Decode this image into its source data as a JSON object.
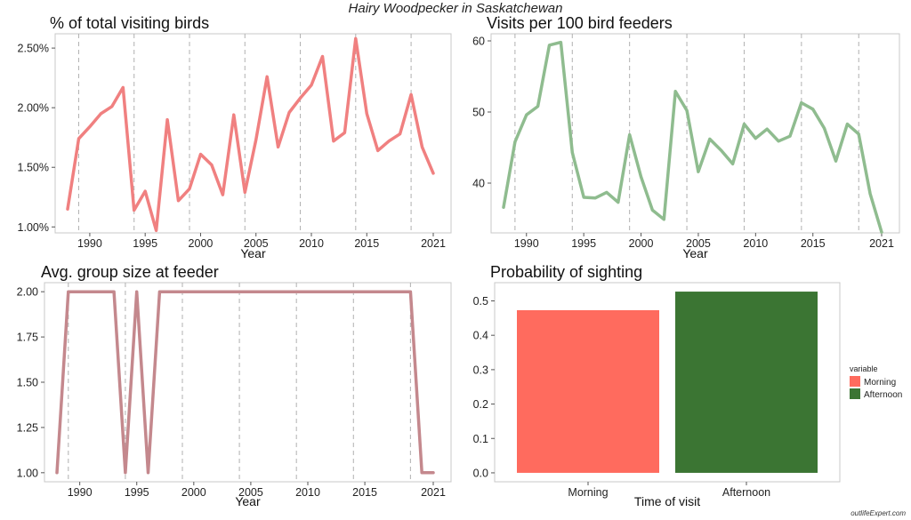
{
  "title": "Hairy Woodpecker in Saskatchewan",
  "watermark": "outlifeExpert.com",
  "colors": {
    "pct_line": "#f08080",
    "visits_line": "#8fbc8f",
    "group_line": "#c4888d",
    "morning": "#ff6b5e",
    "afternoon": "#3b7533",
    "grid": "#b0b0b0"
  },
  "chart_data": [
    {
      "id": "pct",
      "type": "line",
      "title": "% of total visiting birds",
      "xlabel": "Year",
      "ylabel": "",
      "xlim": [
        1988,
        2021
      ],
      "ylim": [
        0.95,
        2.62
      ],
      "xticks": [
        1990,
        1995,
        2000,
        2005,
        2010,
        2015,
        2021
      ],
      "yticks": [
        1.0,
        1.5,
        2.0,
        2.5
      ],
      "ytick_labels": [
        "1.00%",
        "1.50%",
        "2.00%",
        "2.50%"
      ],
      "grid": "vertical dashed",
      "x": [
        1988,
        1989,
        1990,
        1991,
        1992,
        1993,
        1994,
        1995,
        1996,
        1997,
        1998,
        1999,
        2000,
        2001,
        2002,
        2003,
        2004,
        2005,
        2006,
        2007,
        2008,
        2009,
        2010,
        2011,
        2012,
        2013,
        2014,
        2015,
        2016,
        2017,
        2018,
        2019,
        2020,
        2021
      ],
      "series": [
        {
          "values": [
            1.15,
            1.74,
            1.84,
            1.95,
            2.01,
            2.17,
            1.14,
            1.3,
            0.97,
            1.9,
            1.22,
            1.32,
            1.61,
            1.52,
            1.27,
            1.94,
            1.29,
            1.73,
            2.26,
            1.67,
            1.96,
            2.08,
            2.19,
            2.43,
            1.72,
            1.79,
            2.58,
            1.95,
            1.64,
            1.72,
            1.78,
            2.11,
            1.67,
            1.45
          ]
        }
      ]
    },
    {
      "id": "visits",
      "type": "line",
      "title": "Visits per 100 bird feeders",
      "xlabel": "Year",
      "ylabel": "",
      "xlim": [
        1988,
        2021
      ],
      "ylim": [
        33,
        61
      ],
      "xticks": [
        1990,
        1995,
        2000,
        2005,
        2010,
        2015,
        2021
      ],
      "yticks": [
        40,
        50,
        60
      ],
      "ytick_labels": [
        "40",
        "50",
        "60"
      ],
      "grid": "vertical dashed",
      "x": [
        1988,
        1989,
        1990,
        1991,
        1992,
        1993,
        1994,
        1995,
        1996,
        1997,
        1998,
        1999,
        2000,
        2001,
        2002,
        2003,
        2004,
        2005,
        2006,
        2007,
        2008,
        2009,
        2010,
        2011,
        2012,
        2013,
        2014,
        2015,
        2016,
        2017,
        2018,
        2019,
        2020,
        2021
      ],
      "series": [
        {
          "values": [
            36.6,
            45.8,
            49.6,
            50.8,
            59.4,
            59.8,
            44.3,
            38.0,
            37.9,
            38.7,
            37.3,
            46.8,
            40.9,
            36.2,
            34.9,
            52.9,
            50.2,
            41.6,
            46.2,
            44.6,
            42.7,
            48.3,
            46.3,
            47.6,
            45.9,
            46.6,
            51.3,
            50.4,
            47.7,
            43.1,
            48.3,
            46.9,
            38.5,
            33.1
          ]
        }
      ]
    },
    {
      "id": "group",
      "type": "line",
      "title": "Avg. group size at feeder",
      "xlabel": "Year",
      "ylabel": "",
      "xlim": [
        1988,
        2021
      ],
      "ylim": [
        0.95,
        2.05
      ],
      "xticks": [
        1990,
        1995,
        2000,
        2005,
        2010,
        2015,
        2021
      ],
      "yticks": [
        1.0,
        1.25,
        1.5,
        1.75,
        2.0
      ],
      "ytick_labels": [
        "1.00",
        "1.25",
        "1.50",
        "1.75",
        "2.00"
      ],
      "grid": "vertical dashed",
      "x": [
        1988,
        1989,
        1990,
        1991,
        1992,
        1993,
        1994,
        1995,
        1996,
        1997,
        1998,
        1999,
        2000,
        2001,
        2002,
        2003,
        2004,
        2005,
        2006,
        2007,
        2008,
        2009,
        2010,
        2011,
        2012,
        2013,
        2014,
        2015,
        2016,
        2017,
        2018,
        2019,
        2020,
        2021
      ],
      "series": [
        {
          "values": [
            1,
            2,
            2,
            2,
            2,
            2,
            1,
            2,
            1,
            2,
            2,
            2,
            2,
            2,
            2,
            2,
            2,
            2,
            2,
            2,
            2,
            2,
            2,
            2,
            2,
            2,
            2,
            2,
            2,
            2,
            2,
            2,
            1,
            1
          ]
        }
      ]
    },
    {
      "id": "prob",
      "type": "bar",
      "title": "Probability of sighting",
      "xlabel": "Time of visit",
      "ylabel": "",
      "categories": [
        "Morning",
        "Afternoon"
      ],
      "values": [
        0.473,
        0.527
      ],
      "ylim": [
        -0.026,
        0.553
      ],
      "yticks": [
        0.0,
        0.1,
        0.2,
        0.3,
        0.4,
        0.5
      ],
      "ytick_labels": [
        "0.0",
        "0.1",
        "0.2",
        "0.3",
        "0.4",
        "0.5"
      ],
      "legend": {
        "title": "variable",
        "position": "right",
        "items": [
          {
            "label": "Morning",
            "color": "#ff6b5e"
          },
          {
            "label": "Afternoon",
            "color": "#3b7533"
          }
        ]
      }
    }
  ]
}
